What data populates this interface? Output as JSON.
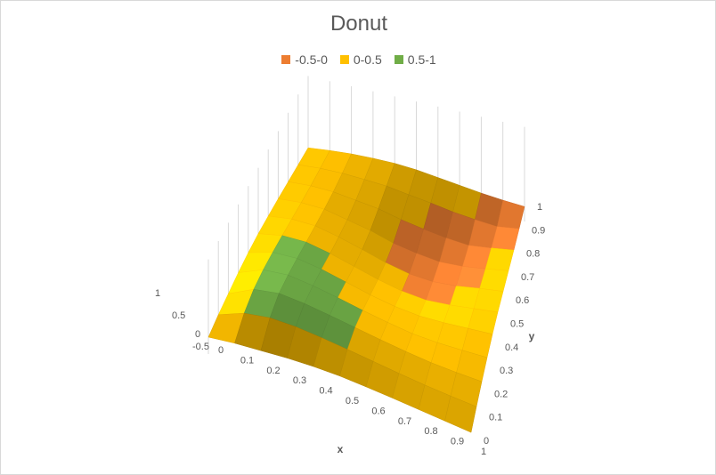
{
  "chart_data": {
    "type": "surface",
    "title": "Donut",
    "xlabel": "x",
    "ylabel": "y",
    "zlabel": "",
    "xlim": [
      0,
      1
    ],
    "ylim": [
      0,
      1
    ],
    "zlim": [
      -0.5,
      1
    ],
    "x_ticks": [
      "0",
      "0.1",
      "0.2",
      "0.3",
      "0.4",
      "0.5",
      "0.6",
      "0.7",
      "0.8",
      "0.9",
      "1"
    ],
    "y_ticks": [
      "0",
      "0.1",
      "0.2",
      "0.3",
      "0.4",
      "0.5",
      "0.6",
      "0.7",
      "0.8",
      "0.9",
      "1"
    ],
    "z_ticks": [
      "-0.5",
      "0",
      "0.5",
      "1"
    ],
    "legend": [
      {
        "label": "-0.5-0",
        "color": "#ed7d31"
      },
      {
        "label": "0-0.5",
        "color": "#ffc000"
      },
      {
        "label": "0.5-1",
        "color": "#70ad47"
      }
    ],
    "legend_position": "top",
    "grid": true,
    "approx_z_grid": [
      [
        0.0,
        0.12,
        0.2,
        0.28,
        0.33,
        0.35,
        0.33,
        0.3,
        0.26,
        0.22,
        0.18
      ],
      [
        0.12,
        0.45,
        0.6,
        0.62,
        0.58,
        0.52,
        0.45,
        0.38,
        0.32,
        0.28,
        0.25
      ],
      [
        0.2,
        0.6,
        0.75,
        0.72,
        0.64,
        0.55,
        0.46,
        0.38,
        0.32,
        0.3,
        0.3
      ],
      [
        0.28,
        0.62,
        0.72,
        0.66,
        0.56,
        0.44,
        0.34,
        0.26,
        0.25,
        0.28,
        0.32
      ],
      [
        0.33,
        0.58,
        0.64,
        0.56,
        0.42,
        0.28,
        0.18,
        0.14,
        0.18,
        0.25,
        0.32
      ],
      [
        0.35,
        0.52,
        0.55,
        0.44,
        0.28,
        0.12,
        0.0,
        -0.04,
        0.04,
        0.16,
        0.28
      ],
      [
        0.33,
        0.45,
        0.46,
        0.34,
        0.18,
        0.0,
        -0.12,
        -0.14,
        -0.06,
        0.08,
        0.2
      ],
      [
        0.3,
        0.38,
        0.38,
        0.26,
        0.14,
        -0.04,
        -0.14,
        -0.2,
        -0.14,
        -0.02,
        0.12
      ],
      [
        0.26,
        0.32,
        0.32,
        0.25,
        0.18,
        0.04,
        -0.06,
        -0.14,
        -0.18,
        -0.08,
        0.04
      ],
      [
        0.22,
        0.28,
        0.3,
        0.28,
        0.25,
        0.16,
        0.08,
        -0.02,
        -0.08,
        -0.12,
        -0.02
      ],
      [
        0.18,
        0.25,
        0.3,
        0.32,
        0.32,
        0.28,
        0.2,
        0.12,
        0.04,
        -0.02,
        -0.06
      ]
    ]
  }
}
